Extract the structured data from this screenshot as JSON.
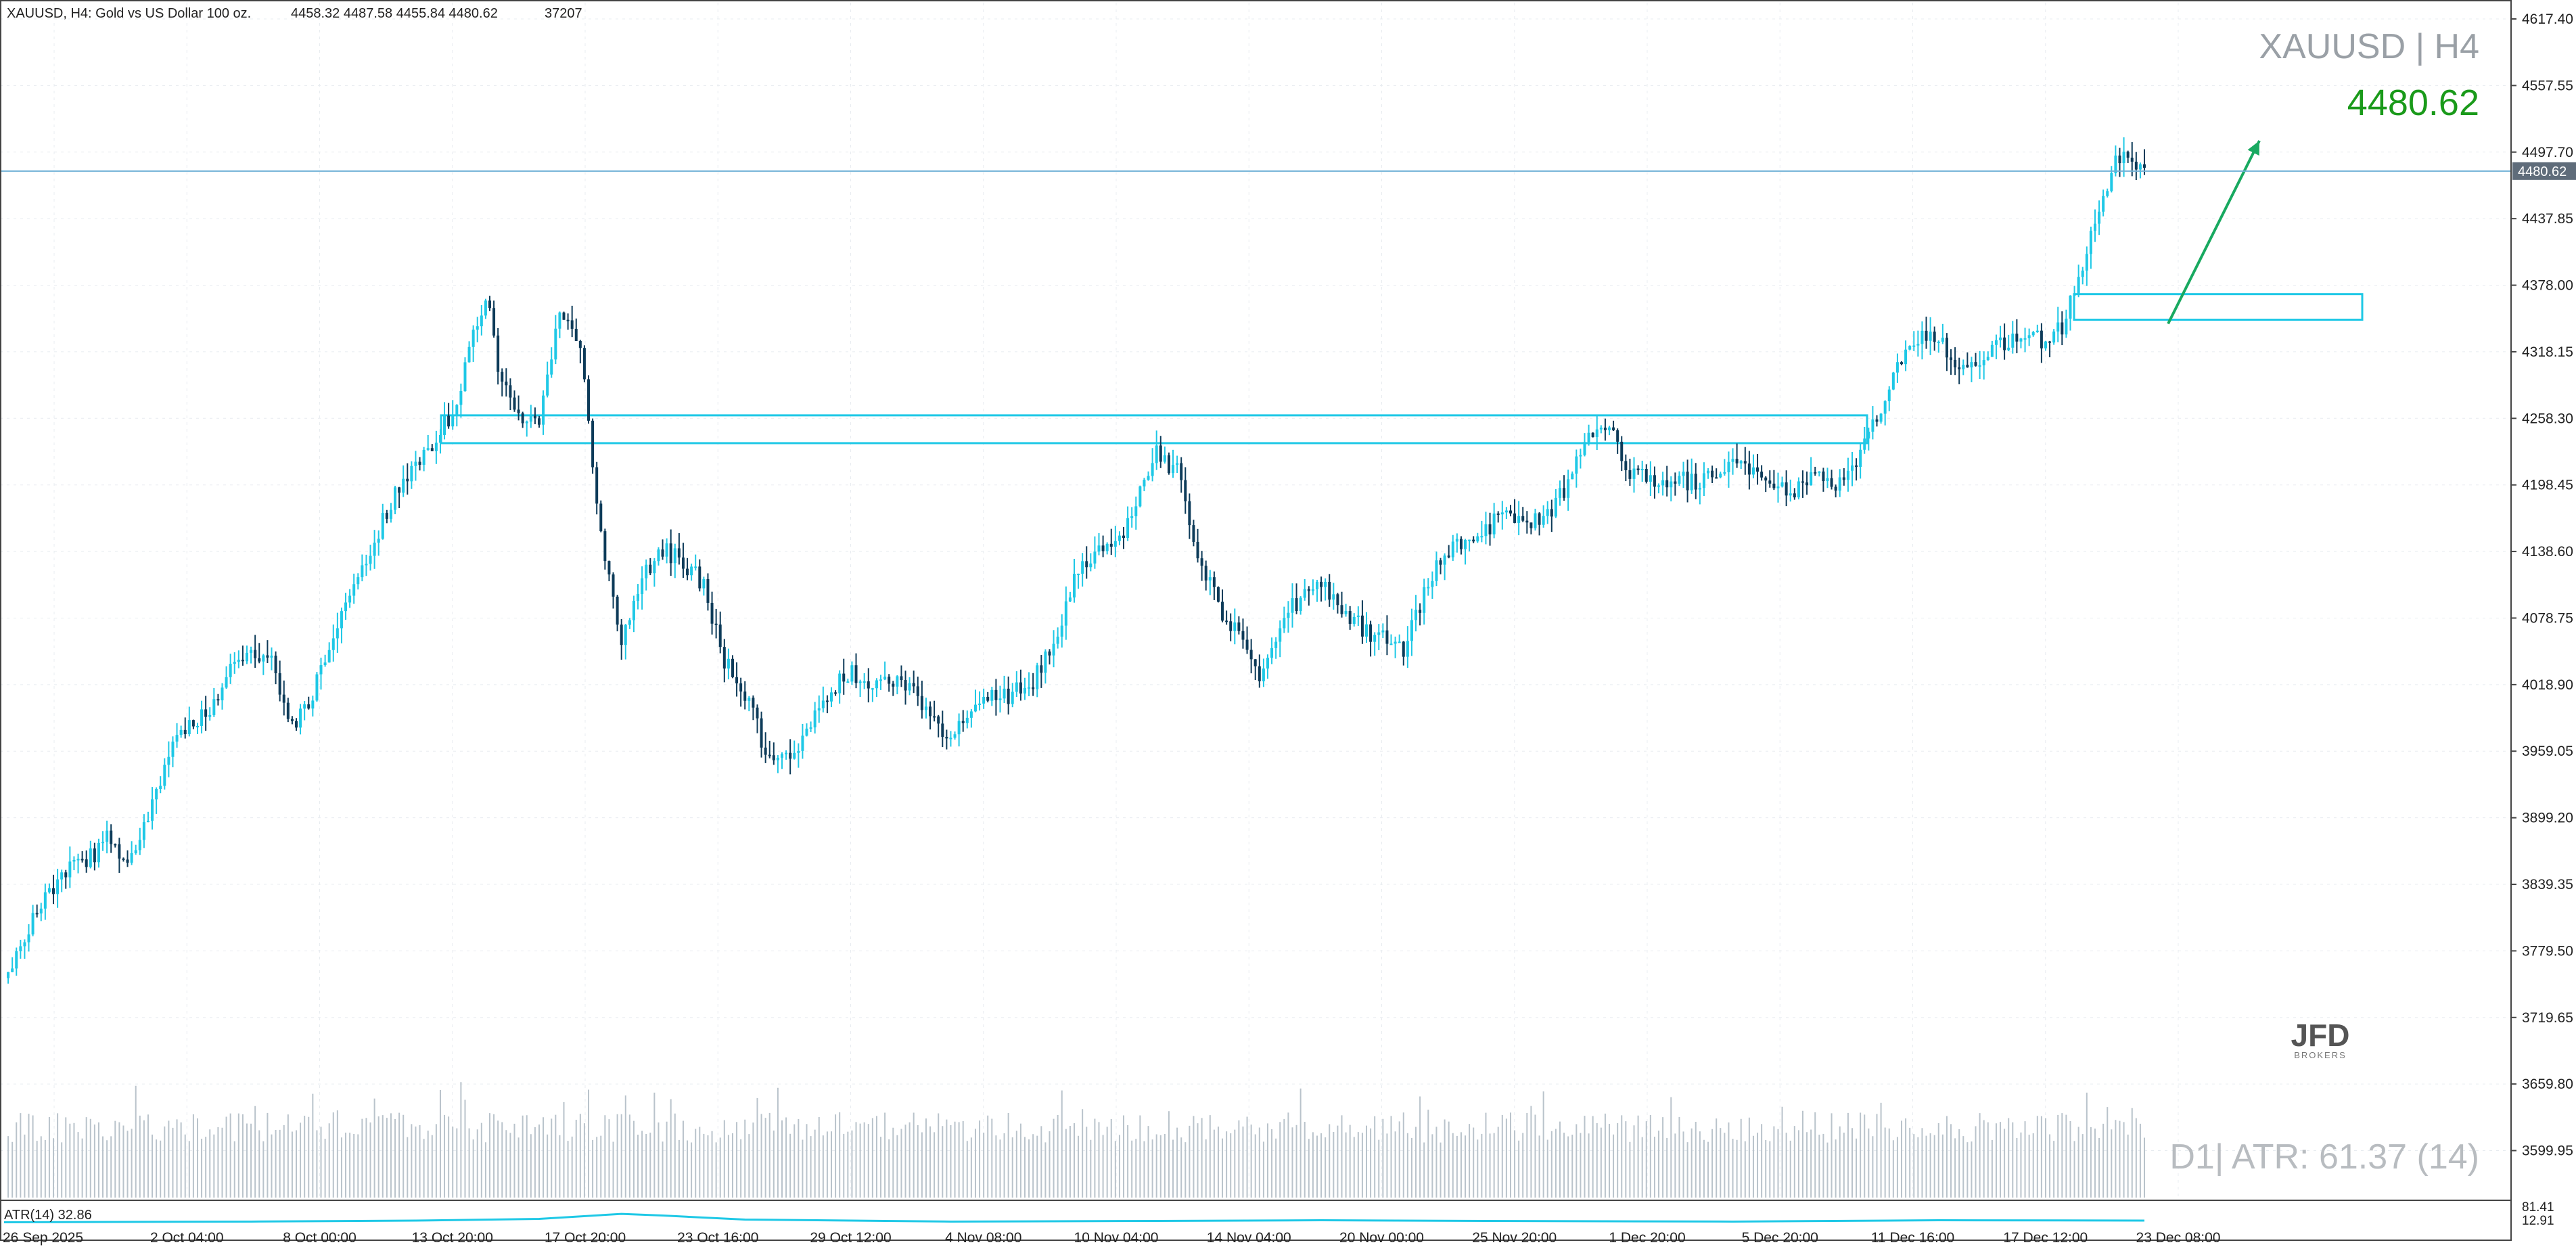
{
  "header": {
    "symbol_line": "XAUUSD, H4:  Gold vs US Dollar 100 oz.",
    "ohlc": "4458.32 4487.58 4455.84 4480.62",
    "volume": "37207"
  },
  "overlay": {
    "pair_tf": "XAUUSD | H4",
    "last_price": "4480.62",
    "atr_text": "D1| ATR: 61.37 (14)",
    "logo_text": "JFD",
    "logo_sub": "BROKERS"
  },
  "colors": {
    "background": "#ffffff",
    "grid": "#e8ecf0",
    "bull_candle": "#1ec8e6",
    "bear_candle": "#0d3b59",
    "volume_bar": "#b9c3cb",
    "price_line": "#6fb0d6",
    "zone": "#1ec8e6",
    "arrow": "#18a960",
    "last_price_text": "#1a9a1a",
    "atr_line": "#1ec8e6",
    "muted_text": "#9aa0a6",
    "price_tag_bg": "#5f6c7a"
  },
  "chart_data": {
    "type": "candlestick",
    "ylim": [
      3565,
      4632
    ],
    "y_ticks": [
      "4617.40",
      "4557.55",
      "4497.70",
      "4437.85",
      "4378.00",
      "4318.15",
      "4258.30",
      "4198.45",
      "4138.60",
      "4078.75",
      "4018.90",
      "3959.05",
      "3899.20",
      "3839.35",
      "3779.50",
      "3719.65",
      "3659.80",
      "3599.95"
    ],
    "x_ticks": [
      "26 Sep 2025",
      "2 Oct 04:00",
      "8 Oct 00:00",
      "13 Oct 20:00",
      "17 Oct 20:00",
      "23 Oct 16:00",
      "29 Oct 12:00",
      "4 Nov 08:00",
      "10 Nov 04:00",
      "14 Nov 04:00",
      "20 Nov 00:00",
      "25 Nov 20:00",
      "1 Dec 20:00",
      "5 Dec 20:00",
      "11 Dec 16:00",
      "17 Dec 12:00",
      "23 Dec 08:00"
    ],
    "current_price": 4480.62,
    "current_price_label": "4480.62",
    "price_path": [
      [
        0,
        3755
      ],
      [
        5,
        3790
      ],
      [
        10,
        3830
      ],
      [
        15,
        3850
      ],
      [
        20,
        3860
      ],
      [
        25,
        3880
      ],
      [
        30,
        3850
      ],
      [
        35,
        3900
      ],
      [
        40,
        3960
      ],
      [
        45,
        3985
      ],
      [
        50,
        3995
      ],
      [
        55,
        4030
      ],
      [
        60,
        4050
      ],
      [
        65,
        4040
      ],
      [
        70,
        3980
      ],
      [
        75,
        4010
      ],
      [
        80,
        4060
      ],
      [
        85,
        4110
      ],
      [
        90,
        4150
      ],
      [
        95,
        4190
      ],
      [
        100,
        4215
      ],
      [
        105,
        4240
      ],
      [
        110,
        4270
      ],
      [
        115,
        4350
      ],
      [
        118,
        4360
      ],
      [
        120,
        4300
      ],
      [
        125,
        4260
      ],
      [
        130,
        4260
      ],
      [
        135,
        4360
      ],
      [
        140,
        4330
      ],
      [
        142,
        4250
      ],
      [
        145,
        4150
      ],
      [
        150,
        4060
      ],
      [
        155,
        4120
      ],
      [
        160,
        4140
      ],
      [
        165,
        4130
      ],
      [
        170,
        4110
      ],
      [
        175,
        4040
      ],
      [
        180,
        4010
      ],
      [
        185,
        3960
      ],
      [
        190,
        3950
      ],
      [
        195,
        3980
      ],
      [
        200,
        4010
      ],
      [
        205,
        4030
      ],
      [
        210,
        4020
      ],
      [
        215,
        4025
      ],
      [
        220,
        4020
      ],
      [
        225,
        3990
      ],
      [
        230,
        3970
      ],
      [
        235,
        3990
      ],
      [
        240,
        4010
      ],
      [
        245,
        4010
      ],
      [
        250,
        4020
      ],
      [
        255,
        4060
      ],
      [
        260,
        4110
      ],
      [
        265,
        4140
      ],
      [
        270,
        4140
      ],
      [
        275,
        4180
      ],
      [
        280,
        4225
      ],
      [
        285,
        4210
      ],
      [
        290,
        4140
      ],
      [
        295,
        4090
      ],
      [
        300,
        4060
      ],
      [
        305,
        4030
      ],
      [
        310,
        4070
      ],
      [
        315,
        4100
      ],
      [
        320,
        4110
      ],
      [
        325,
        4090
      ],
      [
        330,
        4070
      ],
      [
        335,
        4060
      ],
      [
        340,
        4050
      ],
      [
        345,
        4100
      ],
      [
        350,
        4140
      ],
      [
        355,
        4150
      ],
      [
        360,
        4160
      ],
      [
        365,
        4170
      ],
      [
        370,
        4165
      ],
      [
        375,
        4170
      ],
      [
        380,
        4200
      ],
      [
        385,
        4240
      ],
      [
        390,
        4250
      ],
      [
        395,
        4210
      ],
      [
        400,
        4200
      ],
      [
        405,
        4205
      ],
      [
        410,
        4200
      ],
      [
        415,
        4205
      ],
      [
        420,
        4220
      ],
      [
        425,
        4210
      ],
      [
        430,
        4190
      ],
      [
        435,
        4195
      ],
      [
        440,
        4210
      ],
      [
        445,
        4200
      ],
      [
        450,
        4215
      ],
      [
        455,
        4260
      ],
      [
        460,
        4300
      ],
      [
        465,
        4330
      ],
      [
        470,
        4330
      ],
      [
        475,
        4300
      ],
      [
        480,
        4310
      ],
      [
        485,
        4325
      ],
      [
        490,
        4330
      ],
      [
        495,
        4330
      ],
      [
        500,
        4340
      ],
      [
        505,
        4400
      ],
      [
        510,
        4450
      ],
      [
        513,
        4490
      ],
      [
        516,
        4495
      ],
      [
        520,
        4480
      ]
    ],
    "resistance_zone": {
      "top": 4261,
      "bottom": 4236
    },
    "target_zone": {
      "top": 4370,
      "bottom": 4347
    },
    "volume_levels": [
      0.45,
      0.7,
      1.0
    ],
    "atr_indicator": {
      "label": "ATR(14) 32.86",
      "ylim": [
        12.91,
        81.41
      ],
      "y_ticks": [
        "81.41",
        "12.91"
      ],
      "path": [
        [
          0,
          20
        ],
        [
          60,
          22
        ],
        [
          100,
          25
        ],
        [
          130,
          30
        ],
        [
          150,
          45
        ],
        [
          160,
          40
        ],
        [
          180,
          28
        ],
        [
          230,
          22
        ],
        [
          280,
          24
        ],
        [
          320,
          26
        ],
        [
          360,
          24
        ],
        [
          420,
          22
        ],
        [
          470,
          26
        ],
        [
          520,
          25
        ]
      ]
    }
  }
}
